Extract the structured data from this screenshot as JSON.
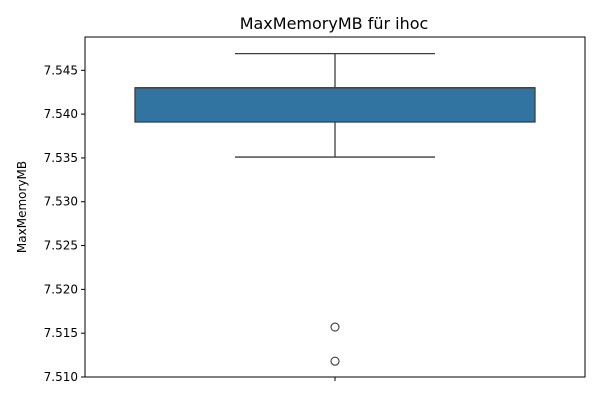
{
  "chart_data": {
    "type": "box",
    "title": "MaxMemoryMB für ihoc",
    "ylabel": "MaxMemoryMB",
    "xlabel": "",
    "ylim": [
      7.51,
      7.5488
    ],
    "yticks": [
      "7.510",
      "7.515",
      "7.520",
      "7.525",
      "7.530",
      "7.535",
      "7.540",
      "7.545"
    ],
    "box": {
      "whisker_low": 7.5351,
      "q1": 7.5391,
      "median": 7.543,
      "q3": 7.543,
      "whisker_high": 7.5469
    },
    "outliers": [
      7.5157,
      7.5118
    ],
    "colors": {
      "box_fill": "#3274a1",
      "line": "#3d3d3d"
    },
    "grid": false,
    "legend": "none"
  }
}
